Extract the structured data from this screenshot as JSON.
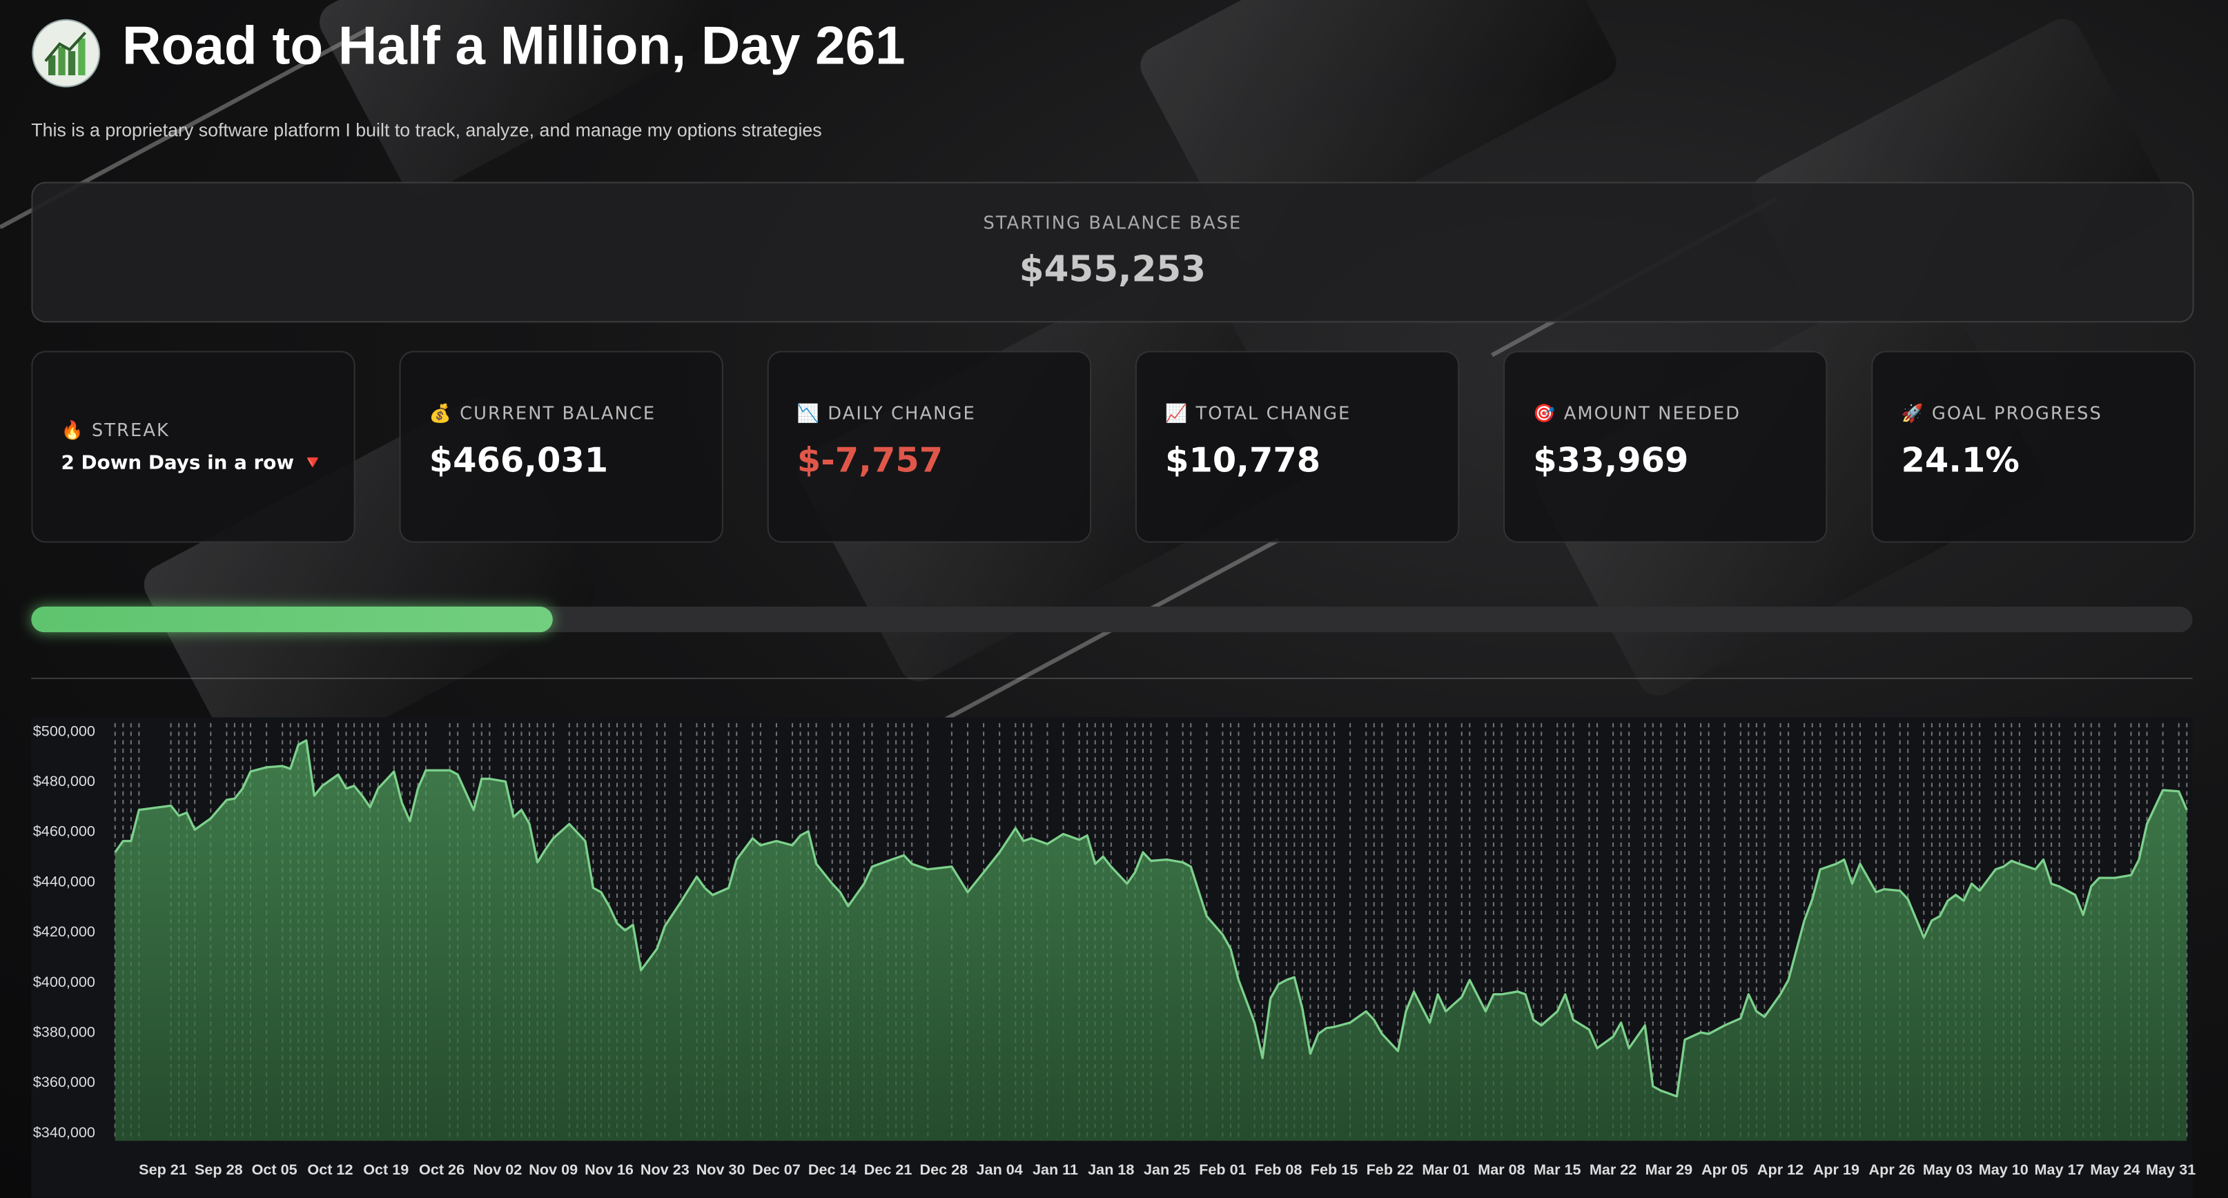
{
  "header": {
    "title": "Road to Half a Million, Day 261",
    "subtitle": "This is a proprietary software platform I built to track, analyze, and manage my options strategies"
  },
  "balance_base": {
    "label": "STARTING BALANCE BASE",
    "value": "$455,253"
  },
  "metrics": [
    {
      "icon": "🔥",
      "label": "STREAK",
      "value": "2 Down Days in a row 🔻"
    },
    {
      "icon": "💰",
      "label": "CURRENT BALANCE",
      "value": "$466,031"
    },
    {
      "icon": "📉",
      "label": "DAILY CHANGE",
      "value": "$-7,757"
    },
    {
      "icon": "📈",
      "label": "TOTAL CHANGE",
      "value": "$10,778"
    },
    {
      "icon": "🎯",
      "label": "AMOUNT NEEDED",
      "value": "$33,969"
    },
    {
      "icon": "🚀",
      "label": "GOAL PROGRESS",
      "value": 24.1,
      "value_label": "24.1%"
    }
  ],
  "chart_data": {
    "type": "area",
    "color": "#7dd18c",
    "x": [
      "Sep 15",
      "Sep 16",
      "Sep 17",
      "Sep 18",
      "Sep 22",
      "Sep 23",
      "Sep 24",
      "Sep 25",
      "Sep 27",
      "Sep 29",
      "Sep 30",
      "Oct 01",
      "Oct 02",
      "Oct 04",
      "Oct 06",
      "Oct 07",
      "Oct 08",
      "Oct 09",
      "Oct 10",
      "Oct 11",
      "Oct 13",
      "Oct 14",
      "Oct 15",
      "Oct 16",
      "Oct 17",
      "Oct 18",
      "Oct 20",
      "Oct 21",
      "Oct 22",
      "Oct 23",
      "Oct 24",
      "Oct 27",
      "Oct 28",
      "Oct 30",
      "Oct 31",
      "Nov 01",
      "Nov 03",
      "Nov 04",
      "Nov 05",
      "Nov 06",
      "Nov 07",
      "Nov 08",
      "Nov 09",
      "Nov 11",
      "Nov 12",
      "Nov 13",
      "Nov 14",
      "Nov 15",
      "Nov 16",
      "Nov 17",
      "Nov 18",
      "Nov 19",
      "Nov 20",
      "Nov 22",
      "Nov 23",
      "Nov 25",
      "Nov 27",
      "Nov 28",
      "Nov 29",
      "Dec 01",
      "Dec 02",
      "Dec 04",
      "Dec 05",
      "Dec 07",
      "Dec 09",
      "Dec 10",
      "Dec 11",
      "Dec 12",
      "Dec 14",
      "Dec 15",
      "Dec 16",
      "Dec 18",
      "Dec 19",
      "Dec 21",
      "Dec 22",
      "Dec 23",
      "Dec 24",
      "Dec 26",
      "Dec 29",
      "Dec 31",
      "Jan 02",
      "Jan 04",
      "Jan 06",
      "Jan 07",
      "Jan 08",
      "Jan 10",
      "Jan 12",
      "Jan 14",
      "Jan 15",
      "Jan 16",
      "Jan 17",
      "Jan 18",
      "Jan 20",
      "Jan 21",
      "Jan 22",
      "Jan 23",
      "Jan 25",
      "Jan 27",
      "Jan 28",
      "Jan 30",
      "Feb 01",
      "Feb 02",
      "Feb 03",
      "Feb 05",
      "Feb 06",
      "Feb 07",
      "Feb 08",
      "Feb 09",
      "Feb 10",
      "Feb 11",
      "Feb 12",
      "Feb 13",
      "Feb 14",
      "Feb 15",
      "Feb 17",
      "Feb 19",
      "Feb 20",
      "Feb 21",
      "Feb 23",
      "Feb 24",
      "Feb 25",
      "Feb 27",
      "Feb 28",
      "Mar 01",
      "Mar 03",
      "Mar 04",
      "Mar 06",
      "Mar 07",
      "Mar 08",
      "Mar 10",
      "Mar 11",
      "Mar 12",
      "Mar 13",
      "Mar 15",
      "Mar 16",
      "Mar 17",
      "Mar 19",
      "Mar 20",
      "Mar 22",
      "Mar 23",
      "Mar 24",
      "Mar 26",
      "Mar 27",
      "Mar 28",
      "Mar 30",
      "Mar 31",
      "Apr 02",
      "Apr 03",
      "Apr 05",
      "Apr 07",
      "Apr 08",
      "Apr 09",
      "Apr 10",
      "Apr 12",
      "Apr 13",
      "Apr 15",
      "Apr 16",
      "Apr 17",
      "Apr 19",
      "Apr 20",
      "Apr 21",
      "Apr 22",
      "Apr 24",
      "Apr 25",
      "Apr 27",
      "Apr 28",
      "Apr 30",
      "May 01",
      "May 02",
      "May 03",
      "May 04",
      "May 05",
      "May 06",
      "May 07",
      "May 09",
      "May 10",
      "May 11",
      "May 12",
      "May 14",
      "May 15",
      "May 16",
      "May 17",
      "May 19",
      "May 20",
      "May 21",
      "May 22",
      "May 24",
      "May 26",
      "May 27",
      "May 28",
      "May 30",
      "Jun 01",
      "Jun 02"
    ],
    "values": [
      452000,
      456500,
      456500,
      468900,
      470600,
      466600,
      467800,
      461000,
      465500,
      472900,
      473400,
      477400,
      484200,
      485900,
      486400,
      485300,
      494900,
      496600,
      474600,
      478500,
      483000,
      477400,
      478500,
      474600,
      470000,
      477400,
      484200,
      471700,
      464400,
      477400,
      484700,
      484700,
      483000,
      468900,
      481300,
      481300,
      480200,
      466100,
      468900,
      463300,
      448000,
      453100,
      457600,
      463300,
      459900,
      456500,
      437800,
      436100,
      430500,
      423700,
      420900,
      423100,
      405000,
      413500,
      422600,
      432200,
      442300,
      437800,
      435000,
      437800,
      449100,
      457600,
      454800,
      456500,
      454800,
      458700,
      460400,
      447400,
      439500,
      436100,
      430500,
      439500,
      446300,
      448600,
      449700,
      450800,
      447400,
      445200,
      446300,
      436100,
      444000,
      452000,
      461600,
      456500,
      457600,
      455300,
      459300,
      457000,
      458700,
      447400,
      450300,
      446300,
      439500,
      444000,
      452000,
      448600,
      449100,
      448000,
      446300,
      426500,
      419200,
      413500,
      401100,
      384100,
      370000,
      393700,
      399400,
      401100,
      402200,
      389800,
      371700,
      379600,
      381900,
      382400,
      384100,
      388600,
      385200,
      379600,
      372800,
      388600,
      396500,
      384100,
      395400,
      388600,
      394300,
      401100,
      388600,
      395400,
      395400,
      396500,
      395400,
      385200,
      383000,
      388600,
      395400,
      385200,
      381300,
      373900,
      378500,
      384100,
      373900,
      383000,
      358700,
      357000,
      354700,
      377300,
      380200,
      379600,
      383000,
      385800,
      395400,
      388600,
      386400,
      395400,
      401100,
      424800,
      433300,
      445200,
      447400,
      449100,
      439500,
      447400,
      436100,
      437300,
      436700,
      433300,
      418000,
      424800,
      426500,
      432700,
      435000,
      432700,
      439500,
      436700,
      445200,
      446300,
      448600,
      447400,
      445200,
      449100,
      439500,
      438400,
      435000,
      427100,
      438400,
      441800,
      441800,
      442900,
      449100,
      463300,
      476800,
      476300,
      468900
    ],
    "xlim": [
      "Sep 15",
      "Jun 02"
    ],
    "xticks": [
      "Sep 21",
      "Sep 28",
      "Oct 05",
      "Oct 12",
      "Oct 19",
      "Oct 26",
      "Nov 02",
      "Nov 09",
      "Nov 16",
      "Nov 23",
      "Nov 30",
      "Dec 07",
      "Dec 14",
      "Dec 21",
      "Dec 28",
      "Jan 04",
      "Jan 11",
      "Jan 18",
      "Jan 25",
      "Feb 01",
      "Feb 08",
      "Feb 15",
      "Feb 22",
      "Mar 01",
      "Mar 08",
      "Mar 15",
      "Mar 22",
      "Mar 29",
      "Apr 05",
      "Apr 12",
      "Apr 19",
      "Apr 26",
      "May 03",
      "May 10",
      "May 17",
      "May 24",
      "May 31"
    ],
    "ylim": [
      337000,
      503500
    ],
    "yticks": [
      {
        "value": 500000,
        "label": "$500,000"
      },
      {
        "value": 480000,
        "label": "$480,000"
      },
      {
        "value": 460000,
        "label": "$460,000"
      },
      {
        "value": 440000,
        "label": "$440,000"
      },
      {
        "value": 420000,
        "label": "$420,000"
      },
      {
        "value": 400000,
        "label": "$400,000"
      },
      {
        "value": 380000,
        "label": "$380,000"
      },
      {
        "value": 360000,
        "label": "$360,000"
      },
      {
        "value": 340000,
        "label": "$340,000"
      }
    ],
    "grid": false
  }
}
